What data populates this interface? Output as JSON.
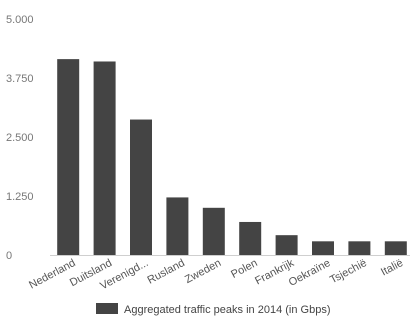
{
  "chart_data": {
    "type": "bar",
    "categories": [
      "Nederland",
      "Duitsland",
      "Verenigd...",
      "Rusland",
      "Zweden",
      "Polen",
      "Frankrijk",
      "Oekraïne",
      "Tsjechië",
      "Italië"
    ],
    "series": [
      {
        "name": "Aggregated traffic peaks in 2014 (in Gbps)",
        "values": [
          4150,
          4100,
          2870,
          1220,
          1000,
          700,
          420,
          290,
          290,
          290
        ]
      }
    ],
    "ylim": [
      0,
      5000
    ],
    "yticks": [
      "0",
      "1.250",
      "2.500",
      "3.750",
      "5.000"
    ],
    "ytick_values": [
      0,
      1250,
      2500,
      3750,
      5000
    ],
    "grid": false,
    "legend_position": "bottom",
    "bar_color": "#444444"
  }
}
